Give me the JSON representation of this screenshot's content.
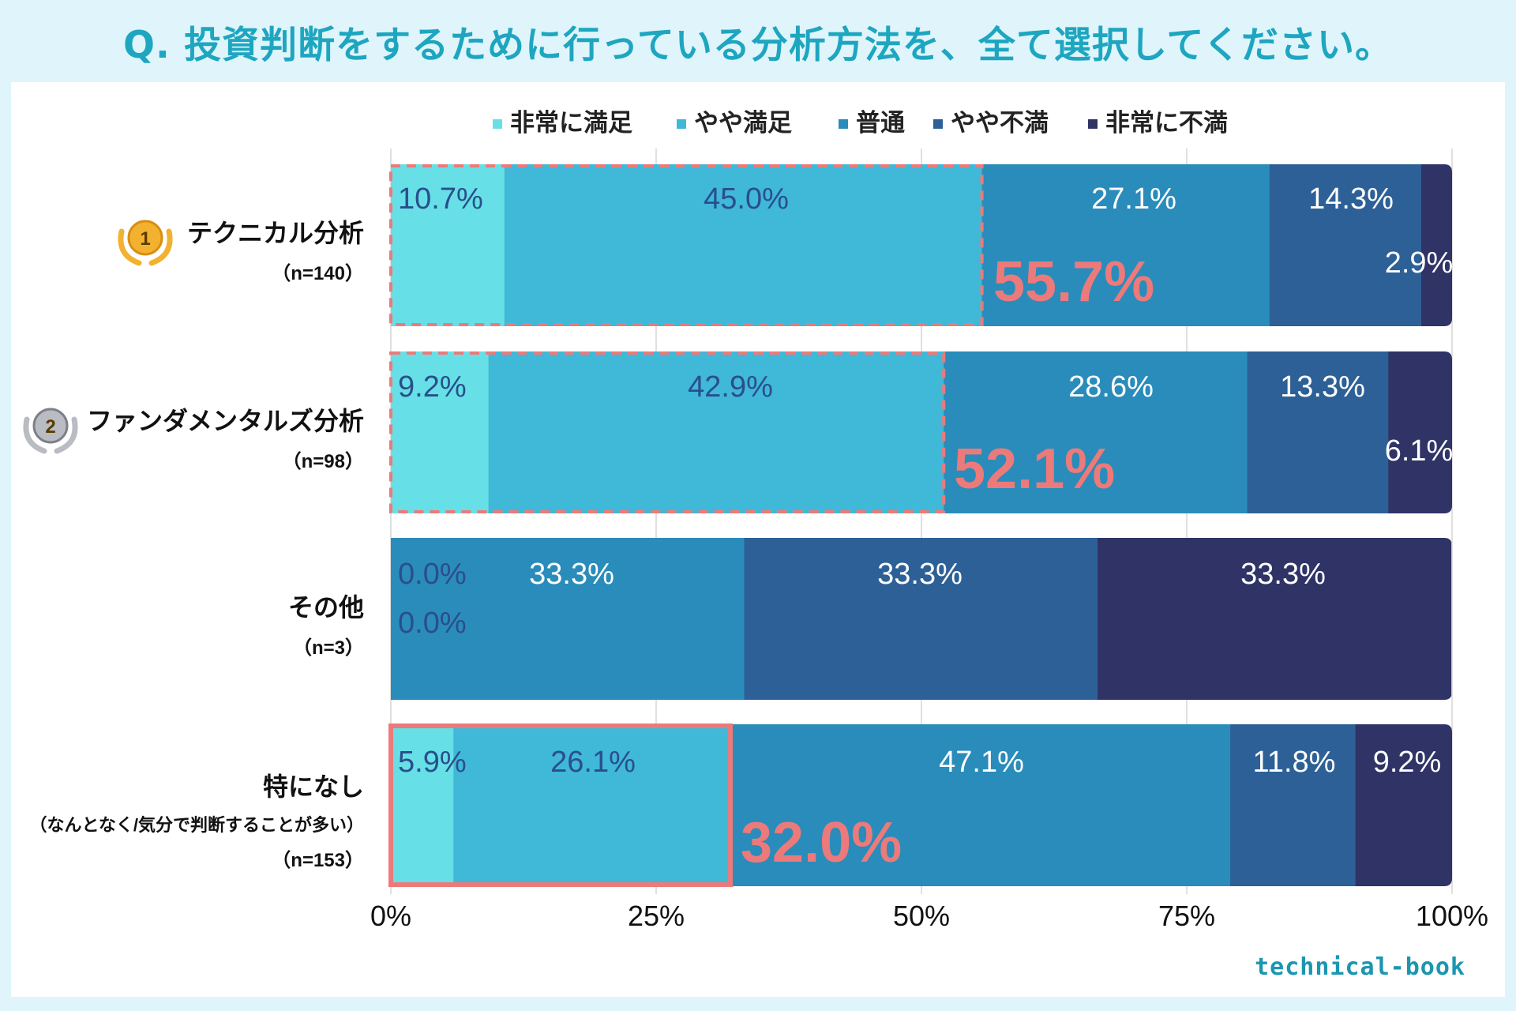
{
  "title": "Q. 投資判断をするために行っている分析方法を、全て選択してください。",
  "brand": "technical-book",
  "chart_data": {
    "type": "bar",
    "orientation": "horizontal-stacked-100",
    "title": "Q. 投資判断をするために行っている分析方法を、全て選択してください。",
    "legend": [
      "非常に満足",
      "やや満足",
      "普通",
      "やや不満",
      "非常に不満"
    ],
    "colors": [
      "#66e0e6",
      "#40b8d8",
      "#2a8cba",
      "#2d6096",
      "#2f3366"
    ],
    "categories": [
      {
        "rank": "1",
        "label": "テクニカル分析",
        "n": "（n=140）"
      },
      {
        "rank": "2",
        "label": "ファンダメンタルズ分析",
        "n": "（n=98）"
      },
      {
        "rank": "",
        "label": "その他",
        "n": "（n=3）"
      },
      {
        "rank": "",
        "label": "特になし",
        "sub": "（なんとなく/気分で判断することが多い）",
        "n": "（n=153）"
      }
    ],
    "series": [
      {
        "name": "非常に満足",
        "values": [
          10.7,
          9.2,
          0.0,
          5.9
        ]
      },
      {
        "name": "やや満足",
        "values": [
          45.0,
          42.9,
          0.0,
          26.1
        ]
      },
      {
        "name": "普通",
        "values": [
          27.1,
          28.6,
          33.3,
          47.1
        ]
      },
      {
        "name": "やや不満",
        "values": [
          14.3,
          13.3,
          33.3,
          11.8
        ]
      },
      {
        "name": "非常に不満",
        "values": [
          2.9,
          6.1,
          33.3,
          9.2
        ]
      }
    ],
    "value_labels": [
      [
        "10.7%",
        "45.0%",
        "27.1%",
        "14.3%",
        "2.9%"
      ],
      [
        "9.2%",
        "42.9%",
        "28.6%",
        "13.3%",
        "6.1%"
      ],
      [
        "0.0%",
        "0.0%",
        "33.3%",
        "33.3%",
        "33.3%"
      ],
      [
        "5.9%",
        "26.1%",
        "47.1%",
        "11.8%",
        "9.2%"
      ]
    ],
    "highlights": [
      {
        "row": 0,
        "value": 55.7,
        "label": "55.7%",
        "style": "dashed"
      },
      {
        "row": 1,
        "value": 52.1,
        "label": "52.1%",
        "style": "dashed"
      },
      {
        "row": 3,
        "value": 32.0,
        "label": "32.0%",
        "style": "solid"
      }
    ],
    "highlight_color": "#ec7a7a",
    "xlim": [
      0,
      100
    ],
    "xticks": [
      0,
      25,
      50,
      75,
      100
    ],
    "xtick_labels": [
      "0%",
      "25%",
      "50%",
      "75%",
      "100%"
    ],
    "grid": true
  }
}
